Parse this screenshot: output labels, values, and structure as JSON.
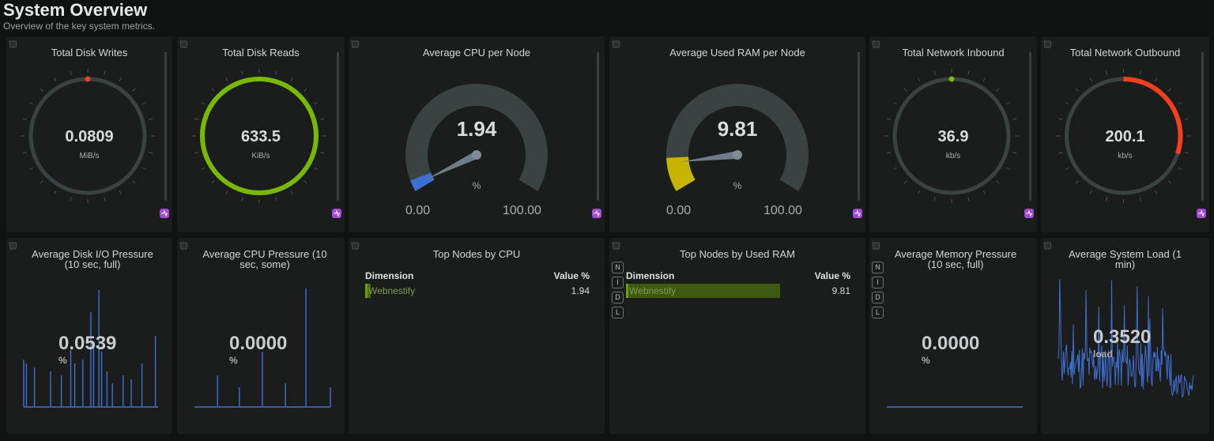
{
  "header": {
    "title": "System Overview",
    "subtitle": "Overview of the key system metrics."
  },
  "gauges_ring": [
    {
      "title": "Total Disk Writes",
      "value": "0.0809",
      "unit": "MiB/s",
      "fill": 0.0,
      "color": "#f0401f",
      "marker": true
    },
    {
      "title": "Total Disk Reads",
      "value": "633.5",
      "unit": "KiB/s",
      "fill": 1.0,
      "color": "#7ab800",
      "marker": false
    },
    {
      "title": "Total Network Inbound",
      "value": "36.9",
      "unit": "kb/s",
      "fill": 0.0,
      "color": "#7ab800",
      "marker": true
    },
    {
      "title": "Total Network Outbound",
      "value": "200.1",
      "unit": "kb/s",
      "fill": 0.3,
      "color": "#f0401f",
      "marker": false
    }
  ],
  "gauges_arc": [
    {
      "title": "Average CPU per Node",
      "value": "1.94",
      "unit": "%",
      "min": "0.00",
      "max": "100.00",
      "fraction": 0.0194,
      "color": "#3c6fd0"
    },
    {
      "title": "Average Used RAM per Node",
      "value": "9.81",
      "unit": "%",
      "min": "0.00",
      "max": "100.00",
      "fraction": 0.0981,
      "color": "#c8b400"
    }
  ],
  "sparks": [
    {
      "title": "Average Disk I/O Pressure (10 sec, full)",
      "value": "0.0539",
      "unit": "%"
    },
    {
      "title": "Average CPU Pressure (10 sec, some)",
      "value": "0.0000",
      "unit": "%"
    },
    {
      "title": "Average Memory Pressure (10 sec, full)",
      "value": "0.0000",
      "unit": "%"
    },
    {
      "title": "Average System Load (1 min)",
      "value": "0.3520",
      "unit": "load"
    }
  ],
  "tables": [
    {
      "title": "Top Nodes by CPU",
      "col1": "Dimension",
      "col2": "Value %",
      "row_name": "Webnestify",
      "row_value": "1.94",
      "fraction": 0.0194
    },
    {
      "title": "Top Nodes by Used RAM",
      "col1": "Dimension",
      "col2": "Value %",
      "row_name": "Webnestify",
      "row_value": "9.81",
      "fraction": 1.0
    }
  ],
  "side_buttons": [
    "N",
    "I",
    "D",
    "L"
  ],
  "colors": {
    "track": "#3a4242",
    "bg": "#1b1d1c",
    "line": "#3f6fd0"
  },
  "icons": [
    "corner-icon",
    "chart-badge-icon"
  ]
}
